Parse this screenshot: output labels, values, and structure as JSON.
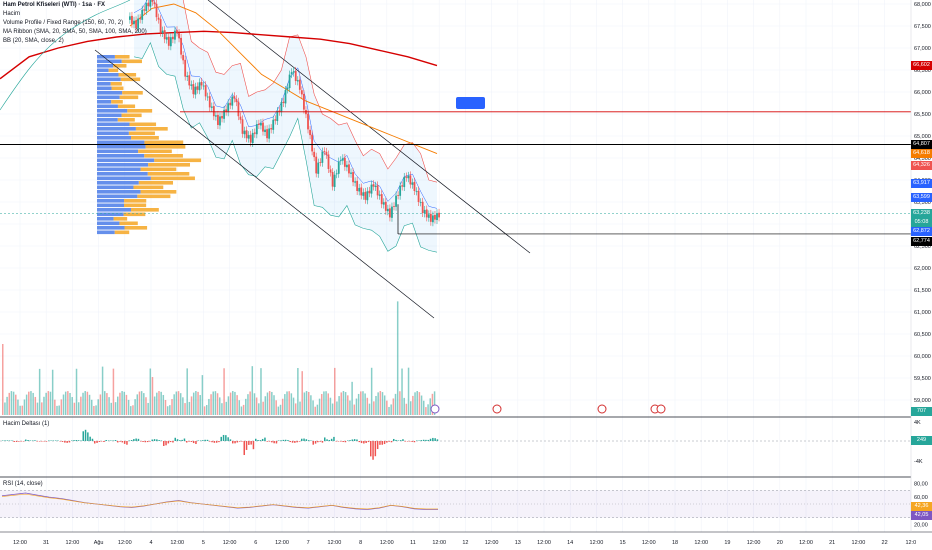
{
  "legend": {
    "symbol": "Ham Petrol Kfiseleri (WTI) · 1sa · FX",
    "volume": "Hacim",
    "volume_profile": "Volume Profile / Fixed Range (150, 60, 70, 2)",
    "ma_ribbon": "MA Ribbon (SMA, 20, SMA, 50, SMA, 100, SMA, 200)",
    "bb": "BB (20, SMA, close, 2)"
  },
  "panes": {
    "delta_title": "Hacim Deltası (1)",
    "rsi_title": "RSI (14, close)"
  },
  "colors": {
    "up": "#26a69a",
    "down": "#ef5350",
    "ma20": "#2962ff",
    "ma50": "#ab47bc",
    "ma100": "#f57c00",
    "ma200": "#d50000",
    "vp_up": "#4a7be8",
    "vp_down": "#f5a623",
    "rsi": "#7e57c2",
    "rsi_ma": "#f5a623"
  },
  "price_axis": {
    "ticks": [
      "68,000",
      "67,500",
      "67,000",
      "66,500",
      "66,000",
      "65,500",
      "65,000",
      "64,500",
      "64,000",
      "63,500",
      "63,000",
      "62,500",
      "62,000",
      "61,500",
      "61,000",
      "60,500",
      "60,000",
      "59,500",
      "59,000"
    ]
  },
  "price_tags": [
    {
      "label": "66,602",
      "color": "#d50000",
      "value": 66.602
    },
    {
      "label": "64,807",
      "color": "#000000",
      "value": 64.807
    },
    {
      "label": "64,618",
      "color": "#f57c00",
      "value": 64.618
    },
    {
      "label": "64,326",
      "color": "#ef5350",
      "value": 64.326
    },
    {
      "label": "63,917",
      "color": "#2962ff",
      "value": 63.917
    },
    {
      "label": "63,599",
      "color": "#2962ff",
      "value": 63.599
    },
    {
      "label": "63,238",
      "color": "#26a69a",
      "value": 63.238
    },
    {
      "label": "05:08",
      "color": "#26a69a",
      "value": 63.1
    },
    {
      "label": "62,872",
      "color": "#2962ff",
      "value": 62.872
    },
    {
      "label": "62,774",
      "color": "#000000",
      "value": 62.774
    }
  ],
  "volume_tag": "707",
  "delta_axis": {
    "ticks": [
      "4K",
      "-4K"
    ],
    "current": "249"
  },
  "rsi_axis": {
    "ticks": [
      "80,00",
      "60,00",
      "40,00",
      "20,00"
    ],
    "current_a": "42,36",
    "current_b": "42,05"
  },
  "flag_label": "",
  "time_axis": [
    "12:00",
    "31",
    "12:00",
    "Ağu",
    "12:00",
    "4",
    "12:00",
    "5",
    "12:00",
    "6",
    "12:00",
    "7",
    "12:00",
    "8",
    "12:00",
    "11",
    "12:00",
    "12",
    "12:00",
    "13",
    "12:00",
    "14",
    "12:00",
    "15",
    "12:00",
    "18",
    "12:00",
    "19",
    "12:00",
    "20",
    "12:00",
    "21",
    "12:00",
    "22",
    "12:0"
  ],
  "chart_data": {
    "type": "candlestick",
    "title": "Ham Petrol Kfiseleri (WTI) · 1sa · FX",
    "ylim": [
      58.6,
      68.1
    ],
    "horizontal_levels": [
      65.55,
      64.807,
      62.774
    ],
    "series": [
      {
        "name": "MA 200 (SMA)",
        "values": [
          66.3,
          66.8,
          67.0,
          67.15,
          67.25,
          67.32,
          67.35,
          67.38,
          67.35,
          67.3,
          67.25,
          67.2,
          67.1,
          66.95,
          66.8,
          66.6
        ]
      },
      {
        "name": "MA 100 (SMA)",
        "values": [
          67.5,
          67.9,
          68.0,
          67.8,
          67.4,
          66.9,
          66.4,
          66.1,
          65.8,
          65.6,
          65.4,
          65.2,
          65.0,
          64.8,
          64.6
        ]
      }
    ],
    "candles_close": [
      67.5,
      67.9,
      68.1,
      67.4,
      67.1,
      67.4,
      66.4,
      66.0,
      66.2,
      65.7,
      65.3,
      65.6,
      65.9,
      65.1,
      64.9,
      65.3,
      65.0,
      65.4,
      65.8,
      66.5,
      66.1,
      65.2,
      64.2,
      64.7,
      63.9,
      64.5,
      64.2,
      63.8,
      63.6,
      63.9,
      63.5,
      63.2,
      63.7,
      64.1,
      63.8,
      63.3,
      63.1,
      63.2
    ],
    "volume_profile_rows": 40,
    "rsi_values": [
      62,
      64,
      66,
      63,
      60,
      58,
      55,
      52,
      50,
      48,
      46,
      45,
      47,
      50,
      53,
      55,
      52,
      50,
      48,
      46,
      44,
      45,
      47,
      49,
      47,
      45,
      44,
      46,
      48,
      45,
      43,
      42,
      44,
      48,
      46,
      43,
      42,
      42
    ],
    "delta_values": [
      50,
      -80,
      120,
      -60,
      40,
      -150,
      80,
      900,
      -200,
      100,
      -300,
      200,
      -100,
      150,
      -400,
      300,
      -250,
      100,
      -150,
      500,
      -200,
      -1200,
      300,
      -200,
      100,
      -150,
      200,
      -300,
      400,
      -100,
      150,
      -200,
      -1500,
      -300,
      200,
      -100,
      100,
      249
    ]
  }
}
